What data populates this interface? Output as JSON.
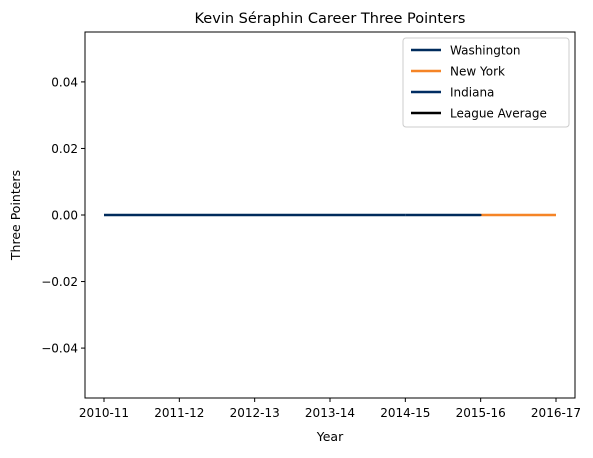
{
  "chart_data": {
    "type": "line",
    "title": "Kevin Séraphin Career Three Pointers",
    "xlabel": "Year",
    "ylabel": "Three Pointers",
    "categories": [
      "2010-11",
      "2011-12",
      "2012-13",
      "2013-14",
      "2014-15",
      "2015-16",
      "2016-17"
    ],
    "ylim": [
      -0.055,
      0.055
    ],
    "yticks": [
      -0.04,
      -0.02,
      0.0,
      0.02,
      0.04
    ],
    "ytick_labels": [
      "−0.04",
      "−0.02",
      "0.00",
      "0.02",
      "0.04"
    ],
    "grid": false,
    "legend_position": "top-right",
    "series": [
      {
        "name": "Washington",
        "color": "#002b5c",
        "x": [
          "2010-11",
          "2011-12",
          "2012-13",
          "2013-14",
          "2014-15"
        ],
        "values": [
          0,
          0,
          0,
          0,
          0
        ]
      },
      {
        "name": "New York",
        "color": "#f58426",
        "x": [
          "2015-16",
          "2016-17"
        ],
        "values": [
          0,
          0
        ]
      },
      {
        "name": "Indiana",
        "color": "#002d62",
        "x": [
          "2015-16"
        ],
        "values": [
          0
        ]
      },
      {
        "name": "League Average",
        "color": "#000000",
        "x": [],
        "values": []
      }
    ]
  }
}
